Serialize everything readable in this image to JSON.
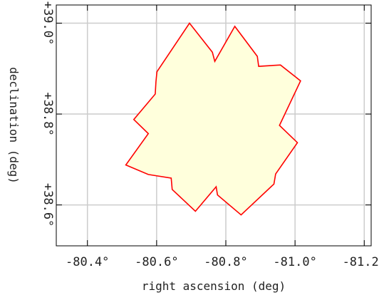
{
  "chart_data": {
    "type": "sky-footprint",
    "xlabel": "right ascension (deg)",
    "ylabel": "declination (deg)",
    "xlim": [
      -80.31,
      -81.22
    ],
    "ylim": [
      38.51,
      39.04
    ],
    "x_ticks": [
      {
        "value": -80.4,
        "label": "-80.4°"
      },
      {
        "value": -80.6,
        "label": "-80.6°"
      },
      {
        "value": -80.8,
        "label": "-80.8°"
      },
      {
        "value": -81.0,
        "label": "-81.0°"
      },
      {
        "value": -81.2,
        "label": "-81.2°"
      }
    ],
    "y_ticks": [
      {
        "value": 39.0,
        "label": "+39.0°"
      },
      {
        "value": 38.8,
        "label": "+38.8°"
      },
      {
        "value": 38.6,
        "label": "+38.6°"
      }
    ],
    "grid": true,
    "footprint": [
      [
        -80.695,
        39.0
      ],
      [
        -80.761,
        38.936
      ],
      [
        -80.768,
        38.916
      ],
      [
        -80.826,
        38.993
      ],
      [
        -80.891,
        38.927
      ],
      [
        -80.895,
        38.905
      ],
      [
        -80.958,
        38.908
      ],
      [
        -81.016,
        38.873
      ],
      [
        -80.955,
        38.775
      ],
      [
        -81.007,
        38.737
      ],
      [
        -80.944,
        38.668
      ],
      [
        -80.939,
        38.646
      ],
      [
        -80.844,
        38.578
      ],
      [
        -80.776,
        38.622
      ],
      [
        -80.772,
        38.64
      ],
      [
        -80.712,
        38.586
      ],
      [
        -80.645,
        38.634
      ],
      [
        -80.642,
        38.659
      ],
      [
        -80.576,
        38.667
      ],
      [
        -80.511,
        38.688
      ],
      [
        -80.576,
        38.757
      ],
      [
        -80.534,
        38.788
      ],
      [
        -80.596,
        38.844
      ],
      [
        -80.598,
        38.871
      ],
      [
        -80.601,
        38.893
      ]
    ],
    "colors": {
      "footprint_fill": "#ffffdc",
      "footprint_stroke": "#ff0000",
      "grid": "#cccccc",
      "frame": "#000000"
    }
  }
}
